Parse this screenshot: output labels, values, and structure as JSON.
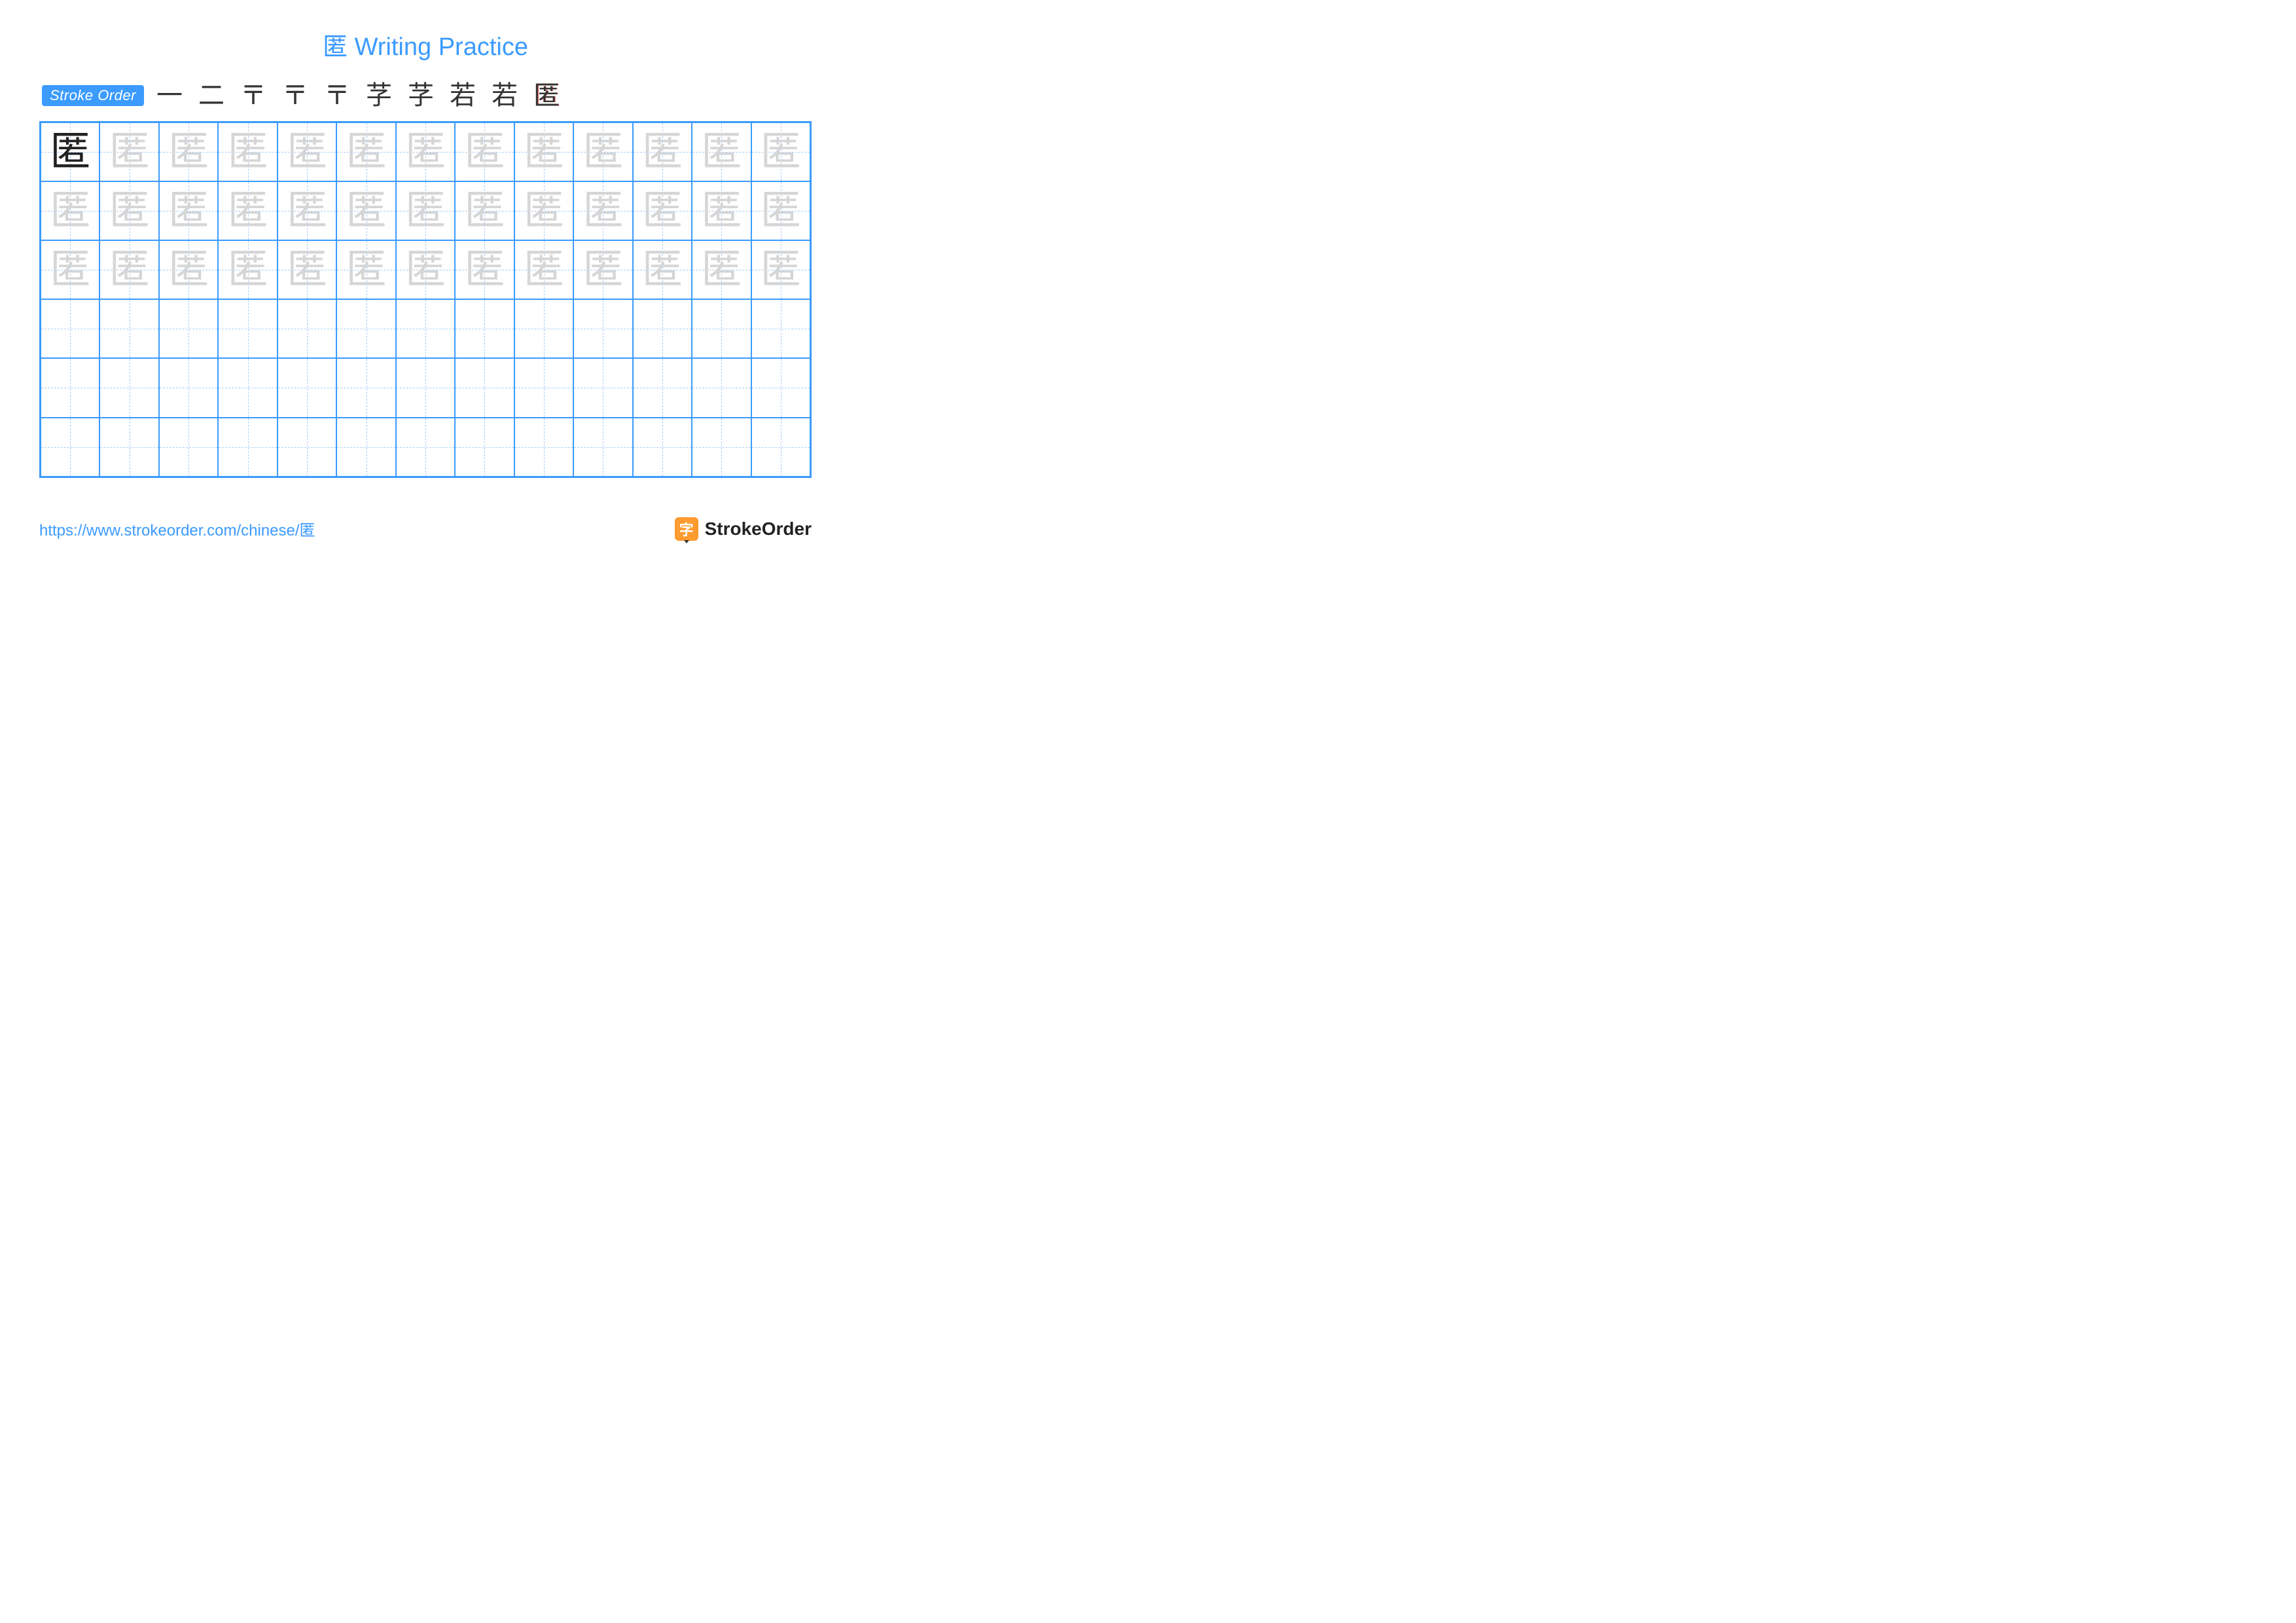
{
  "title": {
    "character": "匿",
    "suffix": "Writing Practice"
  },
  "stroke_order": {
    "label": "Stroke Order",
    "steps": [
      "一",
      "二",
      "〒",
      "〒",
      "〒",
      "芓",
      "芓",
      "若",
      "若",
      "匿"
    ],
    "final_color": "#d83a3a",
    "step_color": "#333333"
  },
  "grid": {
    "rows": 6,
    "cols": 13,
    "character": "匿",
    "trace_rows": 3,
    "border_color": "#3b9bff",
    "guide_color": "#a9cef7",
    "dark_color": "#222222",
    "light_color": "#d6d6d6",
    "char_fontsize": 62
  },
  "footer": {
    "url": "https://www.strokeorder.com/chinese/匿",
    "brand_text": "StrokeOrder",
    "brand_icon_char": "字",
    "brand_icon_bg": "#ff9b2f"
  },
  "colors": {
    "primary": "#3b9bff",
    "background": "#ffffff"
  }
}
